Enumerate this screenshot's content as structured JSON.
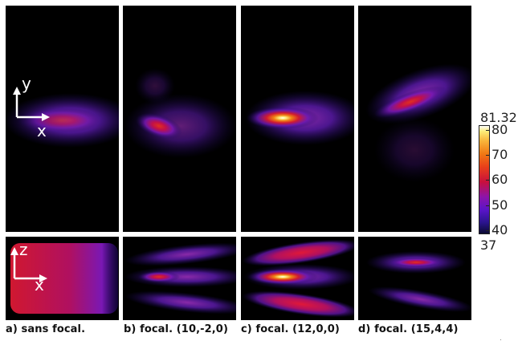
{
  "captions": {
    "a": "a) sans focal.",
    "b": "b) focal. (10,-2,0)",
    "c": "c) focal. (12,0,0)",
    "d": "d) focal. (15,4,4)"
  },
  "axes": {
    "top_vertical": "y",
    "top_horizontal": "x",
    "bottom_vertical": "z",
    "bottom_horizontal": "x"
  },
  "colorbar": {
    "max_label": "81.32",
    "min_label": "37",
    "ticks": [
      "80",
      "70",
      "60",
      "50",
      "40"
    ],
    "colormap": [
      "#0a0a32",
      "#2a148c",
      "#5a14c8",
      "#8c14aa",
      "#c8103c",
      "#e8401a",
      "#f07814",
      "#f8b43a",
      "#fcec78",
      "#ffffff"
    ]
  }
}
